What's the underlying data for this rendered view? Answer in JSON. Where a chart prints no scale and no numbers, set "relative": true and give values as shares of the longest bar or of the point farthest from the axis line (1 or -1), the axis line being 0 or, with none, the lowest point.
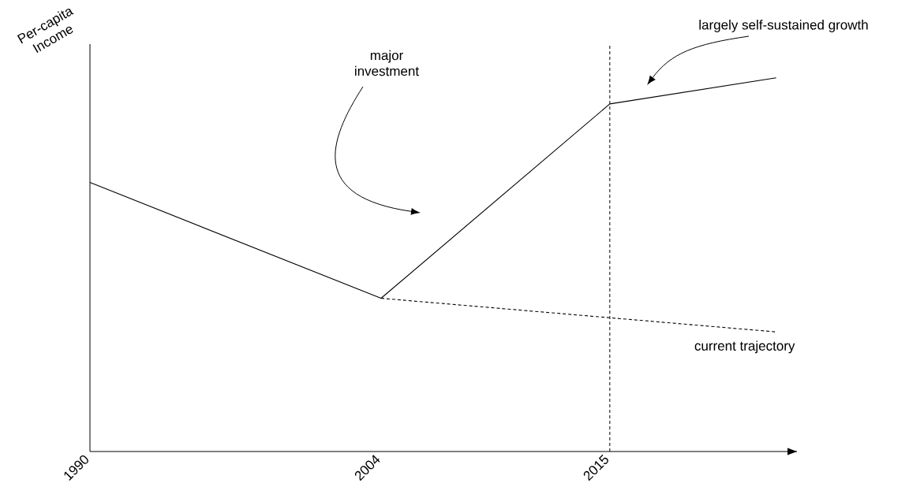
{
  "chart_data": {
    "type": "line",
    "relative": true,
    "ylabel": "Per-capita Income",
    "xlim": [
      1990,
      2024
    ],
    "xticks": [
      1990,
      2004,
      2015
    ],
    "tick_labels": "x",
    "marker": "none",
    "series": [
      {
        "color": "#000000",
        "line_style": "solid",
        "x": [
          1990,
          2004,
          2015,
          2023
        ],
        "values": [
          0.72,
          0.41,
          0.93,
          1
        ]
      },
      {
        "name": "current trajectory",
        "color": "#000000",
        "line_style": "dashed",
        "x": [
          2004,
          2023
        ],
        "values": [
          0.41,
          0.32
        ]
      }
    ],
    "ref_lines": [
      {
        "axis": "x",
        "value": 2015,
        "line_style": "dashed",
        "color": "#000000"
      }
    ],
    "annotations": [
      "major investment",
      "largely self-sustained growth"
    ]
  }
}
